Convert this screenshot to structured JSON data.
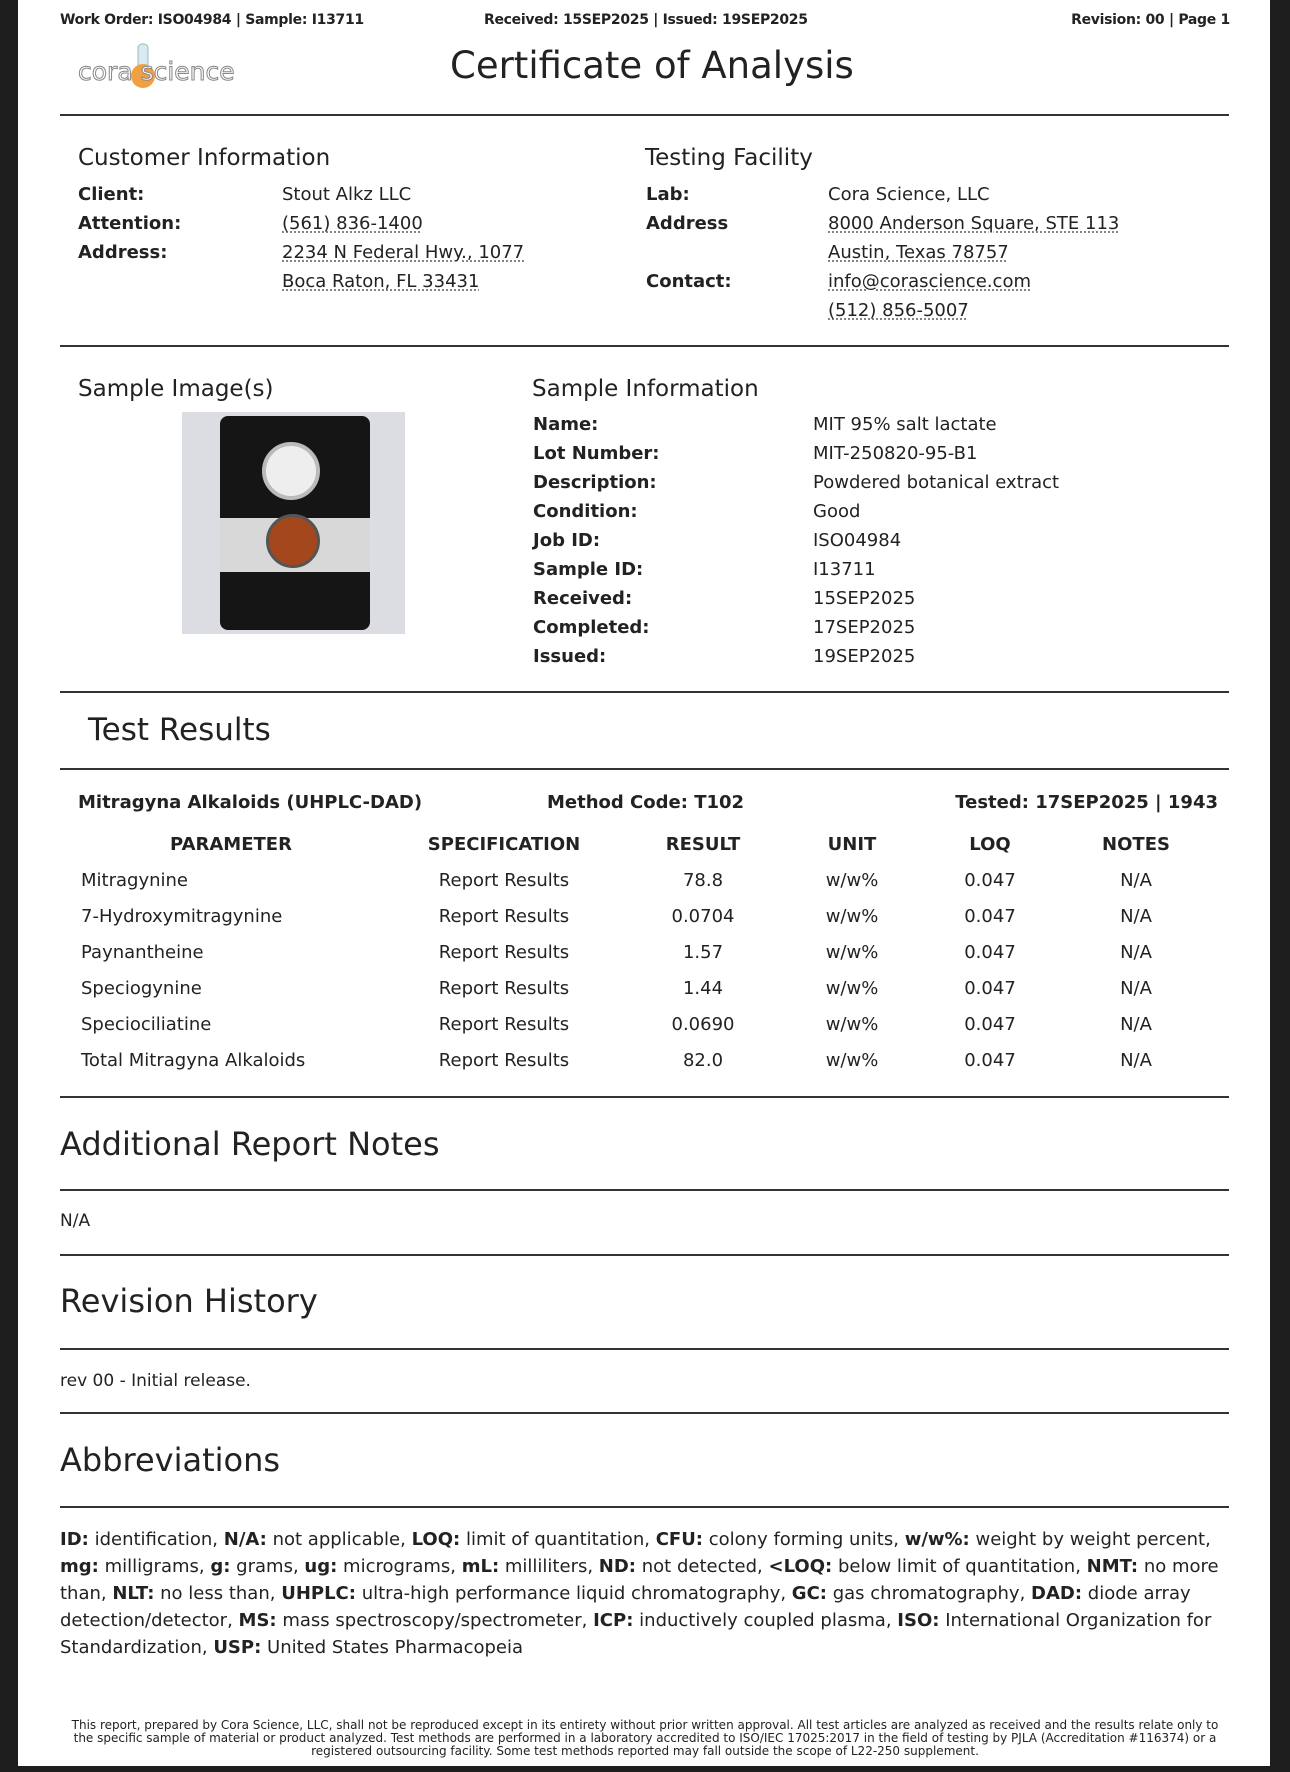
{
  "header": {
    "left": "Work Order: ISO04984 | Sample: I13711",
    "center": "Received: 15SEP2025 | Issued: 19SEP2025",
    "right": "Revision: 00 | Page 1",
    "title": "Certificate of Analysis",
    "logo_text": "corascience"
  },
  "customer": {
    "heading": "Customer Information",
    "rows": [
      {
        "label": "Client:",
        "value": "Stout Alkz LLC"
      },
      {
        "label": "Attention:",
        "value": "(561) 836-1400"
      },
      {
        "label": "Address:",
        "value": "2234 N Federal Hwy., 1077"
      },
      {
        "label": "",
        "value": "Boca Raton, FL 33431"
      }
    ]
  },
  "facility": {
    "heading": "Testing Facility",
    "rows": [
      {
        "label": "Lab:",
        "value": "Cora Science, LLC"
      },
      {
        "label": "Address",
        "value": "8000 Anderson Square, STE 113"
      },
      {
        "label": "",
        "value": "Austin, Texas 78757"
      },
      {
        "label": "Contact:",
        "value": "info@corascience.com"
      },
      {
        "label": "",
        "value": "(512) 856-5007"
      }
    ]
  },
  "sample_image": {
    "heading": "Sample Image(s)"
  },
  "sample_info": {
    "heading": "Sample Information",
    "rows": [
      {
        "label": "Name:",
        "value": "MIT 95% salt lactate"
      },
      {
        "label": "Lot Number:",
        "value": "MIT-250820-95-B1"
      },
      {
        "label": "Description:",
        "value": "Powdered botanical extract"
      },
      {
        "label": "Condition:",
        "value": "Good"
      },
      {
        "label": "Job ID:",
        "value": "ISO04984"
      },
      {
        "label": "Sample ID:",
        "value": "I13711"
      },
      {
        "label": "Received:",
        "value": "15SEP2025"
      },
      {
        "label": "Completed:",
        "value": "17SEP2025"
      },
      {
        "label": "Issued:",
        "value": "19SEP2025"
      }
    ]
  },
  "test_results": {
    "heading": "Test Results",
    "panel": "Mitragyna Alkaloids (UHPLC-DAD)",
    "method": "Method Code: T102",
    "tested": "Tested: 17SEP2025 | 1943",
    "columns": [
      "PARAMETER",
      "SPECIFICATION",
      "RESULT",
      "UNIT",
      "LOQ",
      "NOTES"
    ],
    "rows": [
      [
        "Mitragynine",
        "Report Results",
        "78.8",
        "w/w%",
        "0.047",
        "N/A"
      ],
      [
        "7-Hydroxymitragynine",
        "Report Results",
        "0.0704",
        "w/w%",
        "0.047",
        "N/A"
      ],
      [
        "Paynantheine",
        "Report Results",
        "1.57",
        "w/w%",
        "0.047",
        "N/A"
      ],
      [
        "Speciogynine",
        "Report Results",
        "1.44",
        "w/w%",
        "0.047",
        "N/A"
      ],
      [
        "Speciociliatine",
        "Report Results",
        "0.0690",
        "w/w%",
        "0.047",
        "N/A"
      ],
      [
        "Total Mitragyna Alkaloids",
        "Report Results",
        "82.0",
        "w/w%",
        "0.047",
        "N/A"
      ]
    ]
  },
  "notes": {
    "heading": "Additional Report Notes",
    "text": "N/A"
  },
  "revision": {
    "heading": "Revision History",
    "text": "rev 00 - Initial release."
  },
  "abbreviations": {
    "heading": "Abbreviations",
    "items": [
      [
        "ID:",
        "identification"
      ],
      [
        "N/A:",
        "not applicable"
      ],
      [
        "LOQ:",
        "limit of quantitation"
      ],
      [
        "CFU:",
        "colony forming units"
      ],
      [
        "w/w%:",
        "weight by weight percent"
      ],
      [
        "mg:",
        "milligrams"
      ],
      [
        "g:",
        "grams"
      ],
      [
        "ug:",
        "micrograms"
      ],
      [
        "mL:",
        "milliliters"
      ],
      [
        "ND:",
        "not detected"
      ],
      [
        "<LOQ:",
        "below limit of quantitation"
      ],
      [
        "NMT:",
        "no more than"
      ],
      [
        "NLT:",
        "no less than"
      ],
      [
        "UHPLC:",
        "ultra-high performance liquid chromatography"
      ],
      [
        "GC:",
        "gas chromatography"
      ],
      [
        "DAD:",
        "diode array detection/detector"
      ],
      [
        "MS:",
        "mass spectroscopy/spectrometer"
      ],
      [
        "ICP:",
        "inductively coupled plasma"
      ],
      [
        "ISO:",
        "International Organization for Standardization"
      ],
      [
        "USP:",
        "United States Pharmacopeia"
      ]
    ]
  },
  "footer": "This report, prepared by Cora Science, LLC, shall not be reproduced except in its entirety without prior written approval. All test articles are analyzed as received and the results relate only to the specific sample of material or product analyzed. Test methods are performed in a laboratory accredited to ISO/IEC 17025:2017 in the field of testing by PJLA (Accreditation #116374) or a registered outsourcing facility. Some test methods reported may fall outside the scope of L22-250 supplement."
}
